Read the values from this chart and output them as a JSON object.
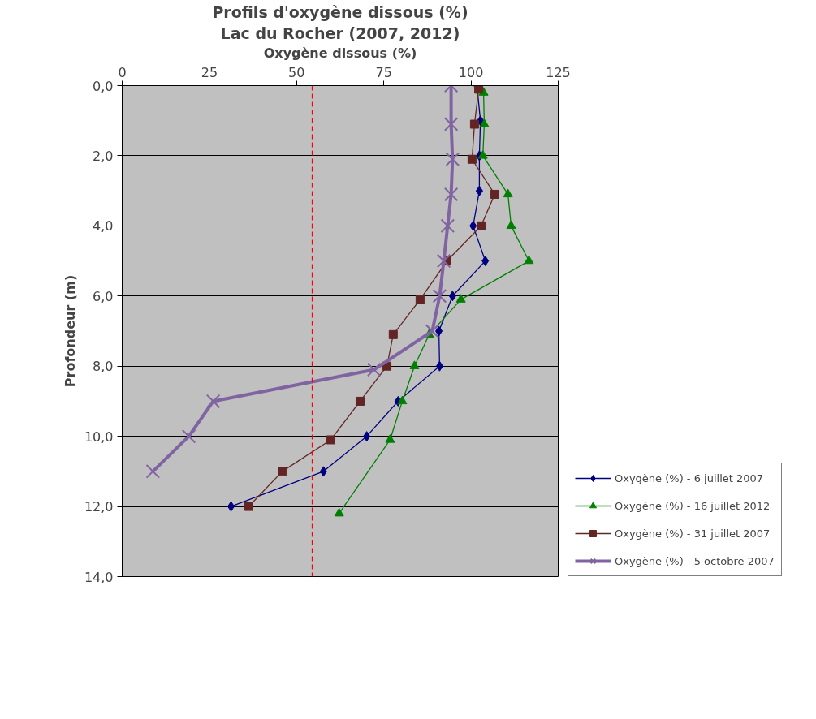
{
  "chart_data": {
    "type": "line",
    "title": "Profils d'oxygène dissous (%)",
    "subtitle": "Lac du Rocher (2007, 2012)",
    "xlabel": "Oxygène dissous (%)",
    "ylabel": "Profondeur (m)",
    "xlim": [
      0,
      125
    ],
    "xticks": [
      0,
      25,
      50,
      75,
      100,
      125
    ],
    "ylim": [
      14,
      0
    ],
    "yticks": [
      {
        "value": 0,
        "label": "0,0"
      },
      {
        "value": 2,
        "label": "2,0"
      },
      {
        "value": 4,
        "label": "4,0"
      },
      {
        "value": 6,
        "label": "6,0"
      },
      {
        "value": 8,
        "label": "8,0"
      },
      {
        "value": 10,
        "label": "10,0"
      },
      {
        "value": 12,
        "label": "12,0"
      },
      {
        "value": 14,
        "label": "14,0"
      }
    ],
    "grid": "y",
    "legend": "bottom right",
    "series": [
      {
        "name": "Oxygène (%) - 6 juillet 2007",
        "color": "#000080",
        "marker": "diamond",
        "x": [
          101.7,
          102.7,
          102.4,
          102.4,
          100.6,
          104.1,
          94.7,
          90.8,
          91.0,
          79.1,
          70.1,
          57.7,
          31.2
        ],
        "values": [
          0,
          1,
          2,
          3,
          4,
          5,
          6,
          7,
          8,
          9,
          10,
          11,
          12
        ]
      },
      {
        "name": "Oxygène (%) - 16 juillet 2012",
        "color": "#008000",
        "marker": "triangle",
        "x": [
          103.6,
          103.8,
          103.4,
          110.6,
          111.5,
          116.6,
          97.1,
          88.0,
          83.8,
          80.3,
          76.8,
          62.2
        ],
        "values": [
          0.2,
          1.1,
          2.0,
          3.1,
          4.0,
          5.0,
          6.1,
          7.1,
          8.0,
          9.0,
          10.1,
          12.2
        ]
      },
      {
        "name": "Oxygène (%) - 31 juillet 2007",
        "color": "#632523",
        "marker": "square",
        "x": [
          102.2,
          101.0,
          100.3,
          106.8,
          102.9,
          93.1,
          85.4,
          77.7,
          75.9,
          68.2,
          59.8,
          45.9,
          36.3
        ],
        "values": [
          0.1,
          1.1,
          2.1,
          3.1,
          4.0,
          5.0,
          6.1,
          7.1,
          8.0,
          9.0,
          10.1,
          11.0,
          12.0
        ]
      },
      {
        "name": "Oxygène (%) - 5 octobre 2007",
        "color": "#8064a2",
        "marker": "cross",
        "x": [
          94.3,
          94.3,
          94.7,
          94.3,
          93.3,
          92.2,
          91.0,
          88.9,
          72.2,
          26.1,
          19.1,
          8.8
        ],
        "values": [
          0,
          1.1,
          2.1,
          3.1,
          4.0,
          5.0,
          6.0,
          7.0,
          8.1,
          9.0,
          10.0,
          11.0
        ]
      }
    ],
    "ref_lines": [
      {
        "axis": "x",
        "value": 54.5,
        "color": "#ff0000",
        "line_style": "dashed"
      }
    ]
  }
}
